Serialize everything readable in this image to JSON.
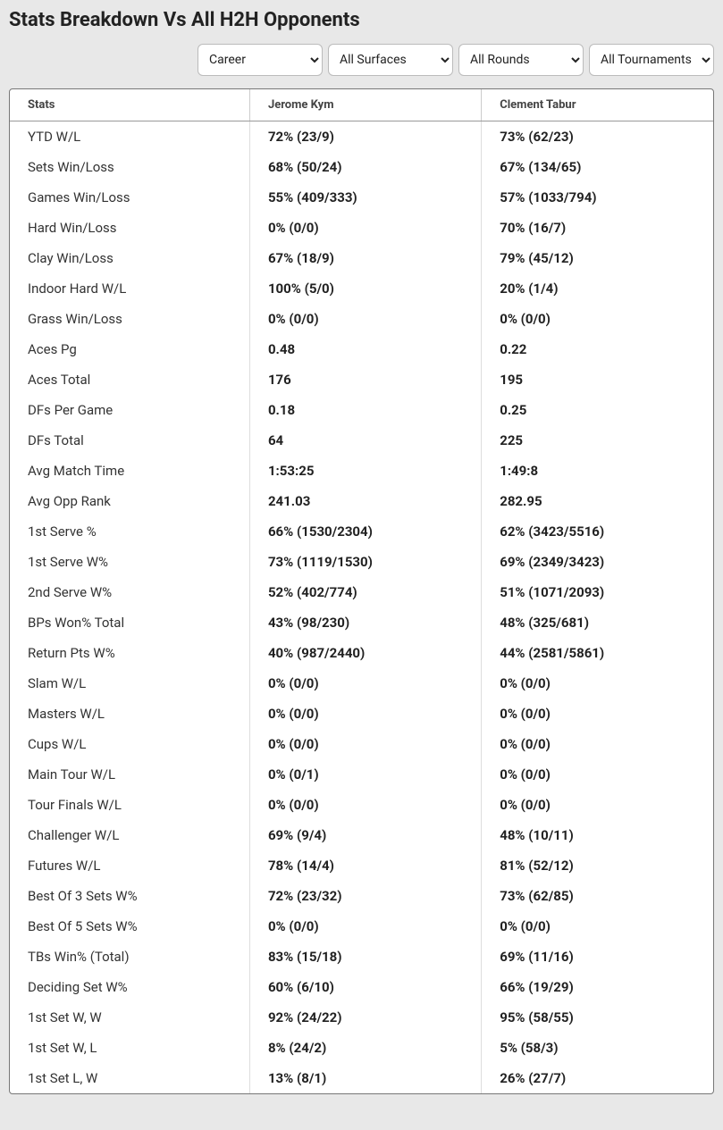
{
  "title": "Stats Breakdown Vs All H2H Opponents",
  "filters": {
    "period": {
      "selected": "Career",
      "options": [
        "Career"
      ]
    },
    "surface": {
      "selected": "All Surfaces",
      "options": [
        "All Surfaces"
      ]
    },
    "round": {
      "selected": "All Rounds",
      "options": [
        "All Rounds"
      ]
    },
    "tournament": {
      "selected": "All Tournaments",
      "options": [
        "All Tournaments"
      ]
    }
  },
  "columns": {
    "stat": "Stats",
    "p1": "Jerome Kym",
    "p2": "Clement Tabur"
  },
  "rows": [
    {
      "stat": "YTD W/L",
      "p1": "72% (23/9)",
      "p2": "73% (62/23)"
    },
    {
      "stat": "Sets Win/Loss",
      "p1": "68% (50/24)",
      "p2": "67% (134/65)"
    },
    {
      "stat": "Games Win/Loss",
      "p1": "55% (409/333)",
      "p2": "57% (1033/794)"
    },
    {
      "stat": "Hard Win/Loss",
      "p1": "0% (0/0)",
      "p2": "70% (16/7)"
    },
    {
      "stat": "Clay Win/Loss",
      "p1": "67% (18/9)",
      "p2": "79% (45/12)"
    },
    {
      "stat": "Indoor Hard W/L",
      "p1": "100% (5/0)",
      "p2": "20% (1/4)"
    },
    {
      "stat": "Grass Win/Loss",
      "p1": "0% (0/0)",
      "p2": "0% (0/0)"
    },
    {
      "stat": "Aces Pg",
      "p1": "0.48",
      "p2": "0.22"
    },
    {
      "stat": "Aces Total",
      "p1": "176",
      "p2": "195"
    },
    {
      "stat": "DFs Per Game",
      "p1": "0.18",
      "p2": "0.25"
    },
    {
      "stat": "DFs Total",
      "p1": "64",
      "p2": "225"
    },
    {
      "stat": "Avg Match Time",
      "p1": "1:53:25",
      "p2": "1:49:8"
    },
    {
      "stat": "Avg Opp Rank",
      "p1": "241.03",
      "p2": "282.95"
    },
    {
      "stat": "1st Serve %",
      "p1": "66% (1530/2304)",
      "p2": "62% (3423/5516)"
    },
    {
      "stat": "1st Serve W%",
      "p1": "73% (1119/1530)",
      "p2": "69% (2349/3423)"
    },
    {
      "stat": "2nd Serve W%",
      "p1": "52% (402/774)",
      "p2": "51% (1071/2093)"
    },
    {
      "stat": "BPs Won% Total",
      "p1": "43% (98/230)",
      "p2": "48% (325/681)"
    },
    {
      "stat": "Return Pts W%",
      "p1": "40% (987/2440)",
      "p2": "44% (2581/5861)"
    },
    {
      "stat": "Slam W/L",
      "p1": "0% (0/0)",
      "p2": "0% (0/0)"
    },
    {
      "stat": "Masters W/L",
      "p1": "0% (0/0)",
      "p2": "0% (0/0)"
    },
    {
      "stat": "Cups W/L",
      "p1": "0% (0/0)",
      "p2": "0% (0/0)"
    },
    {
      "stat": "Main Tour W/L",
      "p1": "0% (0/1)",
      "p2": "0% (0/0)"
    },
    {
      "stat": "Tour Finals W/L",
      "p1": "0% (0/0)",
      "p2": "0% (0/0)"
    },
    {
      "stat": "Challenger W/L",
      "p1": "69% (9/4)",
      "p2": "48% (10/11)"
    },
    {
      "stat": "Futures W/L",
      "p1": "78% (14/4)",
      "p2": "81% (52/12)"
    },
    {
      "stat": "Best Of 3 Sets W%",
      "p1": "72% (23/32)",
      "p2": "73% (62/85)"
    },
    {
      "stat": "Best Of 5 Sets W%",
      "p1": "0% (0/0)",
      "p2": "0% (0/0)"
    },
    {
      "stat": "TBs Win% (Total)",
      "p1": "83% (15/18)",
      "p2": "69% (11/16)"
    },
    {
      "stat": "Deciding Set W%",
      "p1": "60% (6/10)",
      "p2": "66% (19/29)"
    },
    {
      "stat": "1st Set W, W",
      "p1": "92% (24/22)",
      "p2": "95% (58/55)"
    },
    {
      "stat": "1st Set W, L",
      "p1": "8% (24/2)",
      "p2": "5% (58/3)"
    },
    {
      "stat": "1st Set L, W",
      "p1": "13% (8/1)",
      "p2": "26% (27/7)"
    }
  ]
}
